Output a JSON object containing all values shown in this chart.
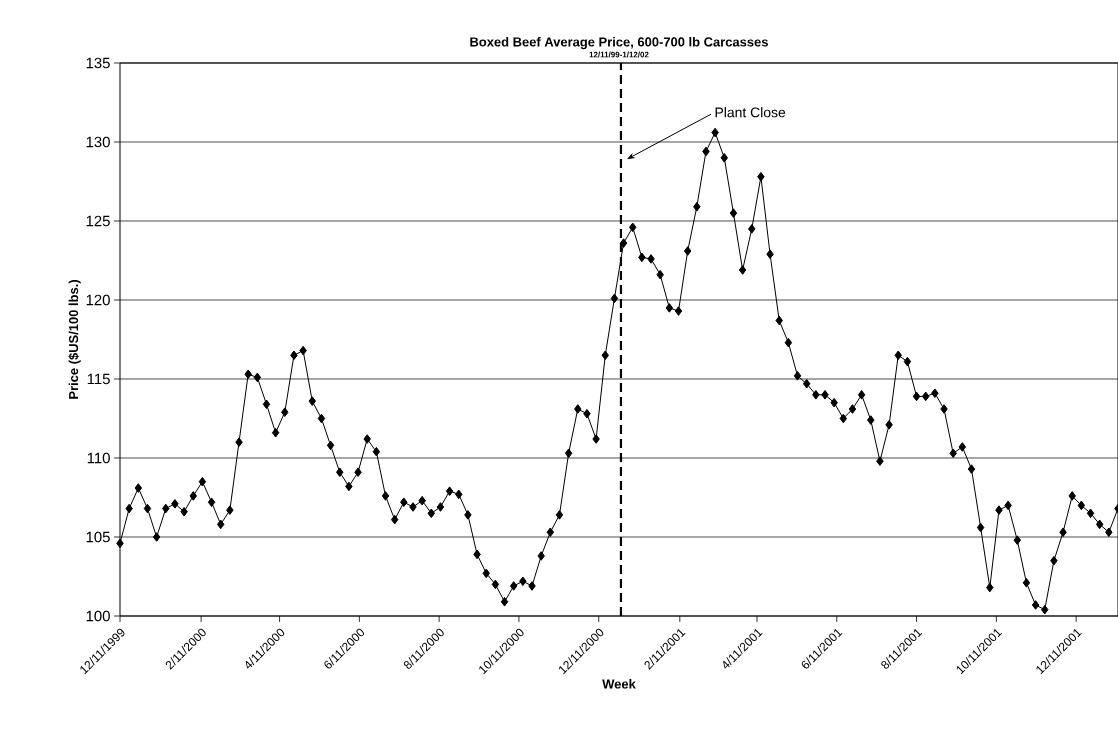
{
  "chart_data": {
    "type": "line",
    "title": "Boxed Beef Average Price, 600-700 lb Carcasses",
    "subtitle": "12/11/99-1/12/02",
    "xlabel": "Week",
    "ylabel": "Price ($US/100 lbs.)",
    "x": [
      "1999-12-11",
      "1999-12-18",
      "1999-12-25",
      "2000-01-01",
      "2000-01-08",
      "2000-01-15",
      "2000-01-22",
      "2000-01-29",
      "2000-02-05",
      "2000-02-12",
      "2000-02-19",
      "2000-02-26",
      "2000-03-04",
      "2000-03-11",
      "2000-03-18",
      "2000-03-25",
      "2000-04-01",
      "2000-04-08",
      "2000-04-15",
      "2000-04-22",
      "2000-04-29",
      "2000-05-06",
      "2000-05-13",
      "2000-05-20",
      "2000-05-27",
      "2000-06-03",
      "2000-06-10",
      "2000-06-17",
      "2000-06-24",
      "2000-07-01",
      "2000-07-08",
      "2000-07-15",
      "2000-07-22",
      "2000-07-29",
      "2000-08-05",
      "2000-08-12",
      "2000-08-19",
      "2000-08-26",
      "2000-09-02",
      "2000-09-09",
      "2000-09-16",
      "2000-09-23",
      "2000-09-30",
      "2000-10-07",
      "2000-10-14",
      "2000-10-21",
      "2000-10-28",
      "2000-11-04",
      "2000-11-11",
      "2000-11-18",
      "2000-11-25",
      "2000-12-02",
      "2000-12-09",
      "2000-12-16",
      "2000-12-23",
      "2000-12-30",
      "2001-01-06",
      "2001-01-13",
      "2001-01-20",
      "2001-01-27",
      "2001-02-03",
      "2001-02-10",
      "2001-02-17",
      "2001-02-24",
      "2001-03-03",
      "2001-03-10",
      "2001-03-17",
      "2001-03-24",
      "2001-03-31",
      "2001-04-07",
      "2001-04-14",
      "2001-04-21",
      "2001-04-28",
      "2001-05-05",
      "2001-05-12",
      "2001-05-19",
      "2001-05-26",
      "2001-06-02",
      "2001-06-09",
      "2001-06-16",
      "2001-06-23",
      "2001-06-30",
      "2001-07-07",
      "2001-07-14",
      "2001-07-21",
      "2001-07-28",
      "2001-08-04",
      "2001-08-11",
      "2001-08-18",
      "2001-08-25",
      "2001-09-01",
      "2001-09-08",
      "2001-09-15",
      "2001-09-22",
      "2001-09-29",
      "2001-10-06",
      "2001-10-13",
      "2001-10-20",
      "2001-10-27",
      "2001-11-03",
      "2001-11-10",
      "2001-11-17",
      "2001-11-24",
      "2001-12-01",
      "2001-12-08",
      "2001-12-15",
      "2001-12-22",
      "2001-12-29",
      "2002-01-05",
      "2002-01-12"
    ],
    "series": [
      {
        "color": "#000000",
        "values": [
          104.6,
          106.8,
          108.1,
          106.8,
          105.0,
          106.8,
          107.1,
          106.6,
          107.6,
          108.5,
          107.2,
          105.8,
          106.7,
          111.0,
          115.3,
          115.1,
          113.4,
          111.6,
          112.9,
          116.5,
          116.8,
          113.6,
          112.5,
          110.8,
          109.1,
          108.2,
          109.1,
          111.2,
          110.4,
          107.6,
          106.1,
          107.2,
          106.9,
          107.3,
          106.5,
          106.9,
          107.9,
          107.7,
          106.4,
          103.9,
          102.7,
          102.0,
          100.9,
          101.9,
          102.2,
          101.9,
          103.8,
          105.3,
          106.4,
          110.3,
          113.1,
          112.8,
          111.2,
          116.5,
          120.1,
          123.6,
          124.6,
          122.7,
          122.6,
          121.6,
          119.5,
          119.3,
          123.1,
          125.9,
          129.4,
          130.6,
          129.0,
          125.5,
          121.9,
          124.5,
          127.8,
          122.9,
          118.7,
          117.3,
          115.2,
          114.7,
          114.0,
          114.0,
          113.5,
          112.5,
          113.1,
          114.0,
          112.4,
          109.8,
          112.1,
          116.5,
          116.1,
          113.9,
          113.9,
          114.1,
          113.1,
          110.3,
          110.7,
          109.3,
          105.6,
          101.8,
          106.7,
          107.0,
          104.8,
          102.1,
          100.7,
          100.4,
          103.5,
          105.3,
          107.6,
          107.0,
          106.5,
          105.8,
          105.3,
          106.8
        ]
      }
    ],
    "xlim": [
      "1999-12-11",
      "2002-01-12"
    ],
    "xticks": [
      {
        "value": "1999-12-11",
        "label": "12/11/1999"
      },
      {
        "value": "2000-02-11",
        "label": "2/11/2000"
      },
      {
        "value": "2000-04-11",
        "label": "4/11/2000"
      },
      {
        "value": "2000-06-11",
        "label": "6/11/2000"
      },
      {
        "value": "2000-08-11",
        "label": "8/11/2000"
      },
      {
        "value": "2000-10-11",
        "label": "10/11/2000"
      },
      {
        "value": "2000-12-11",
        "label": "12/11/2000"
      },
      {
        "value": "2001-02-11",
        "label": "2/11/2001"
      },
      {
        "value": "2001-04-11",
        "label": "4/11/2001"
      },
      {
        "value": "2001-06-11",
        "label": "6/11/2001"
      },
      {
        "value": "2001-08-11",
        "label": "8/11/2001"
      },
      {
        "value": "2001-10-11",
        "label": "10/11/2001"
      },
      {
        "value": "2001-12-11",
        "label": "12/11/2001"
      }
    ],
    "ylim": [
      100,
      135
    ],
    "yticks": [
      100,
      105,
      110,
      115,
      120,
      125,
      130,
      135
    ],
    "ref_lines": [
      {
        "axis": "x",
        "value": "2000-12-28",
        "label": "Plant Close",
        "line_style": "dashed",
        "color": "#000000"
      }
    ],
    "grid": "y",
    "legend": false,
    "marker": "diamond",
    "line_style": "solid"
  }
}
